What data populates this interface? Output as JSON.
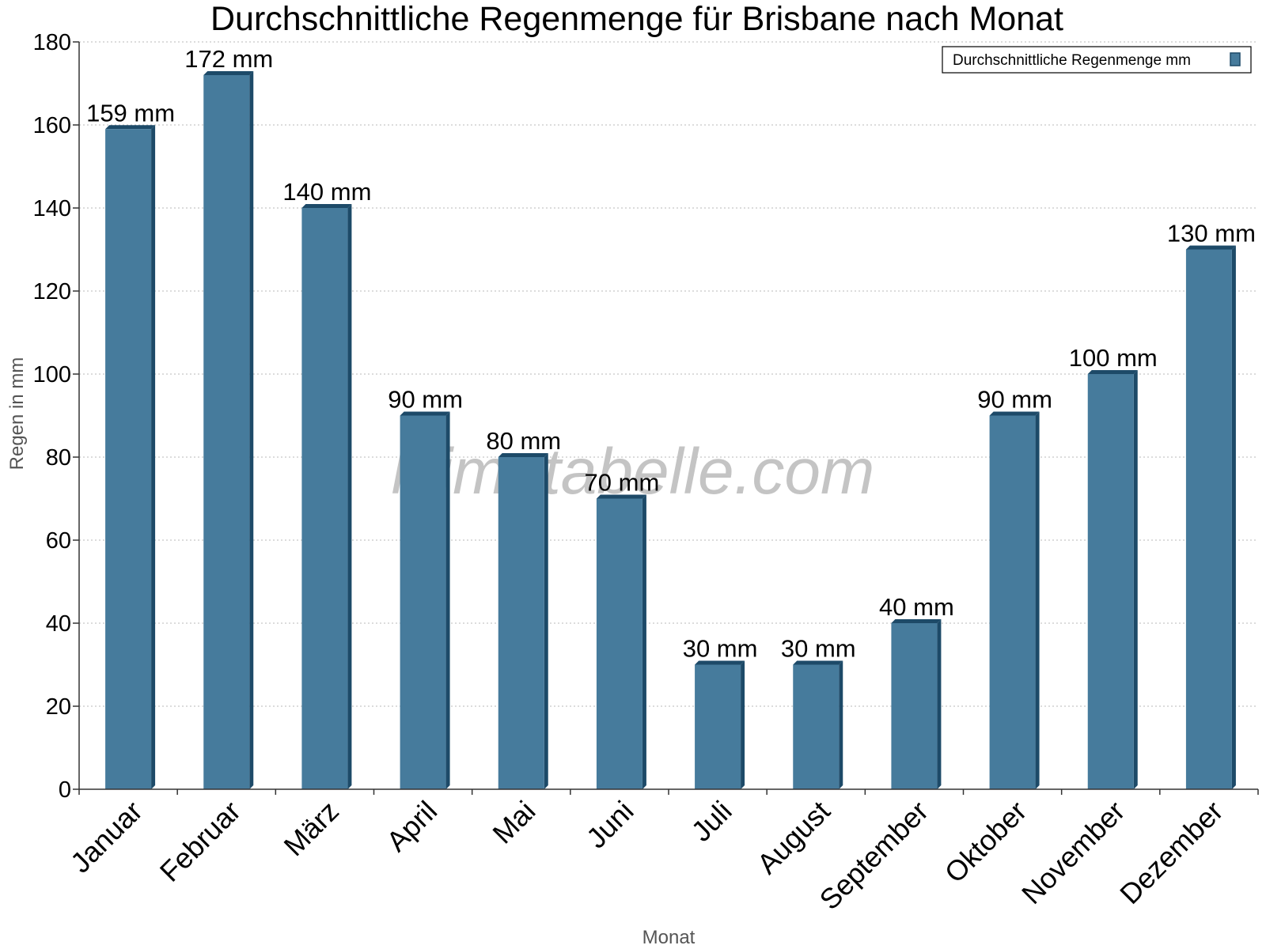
{
  "chart_data": {
    "type": "bar",
    "title": "Durchschnittliche Regenmenge für Brisbane nach Monat",
    "xlabel": "Monat",
    "ylabel": "Regen in mm",
    "ylim": [
      0,
      180
    ],
    "yticks": [
      0,
      20,
      40,
      60,
      80,
      100,
      120,
      140,
      160,
      180
    ],
    "grid": true,
    "legend_position": "top-right",
    "categories": [
      "Januar",
      "Februar",
      "März",
      "April",
      "Mai",
      "Juni",
      "Juli",
      "August",
      "September",
      "Oktober",
      "November",
      "Dezember"
    ],
    "series": [
      {
        "name": "Durchschnittliche Regenmenge mm",
        "values": [
          159,
          172,
          140,
          90,
          80,
          70,
          30,
          30,
          40,
          90,
          100,
          130
        ],
        "value_labels": [
          "159 mm",
          "172 mm",
          "140 mm",
          "90 mm",
          "80 mm",
          "70 mm",
          "30 mm",
          "30 mm",
          "40 mm",
          "90 mm",
          "100 mm",
          "130 mm"
        ],
        "color": "#467b9c",
        "shadow_color": "#1d4a68"
      }
    ],
    "watermark": "klimatabelle.com"
  }
}
